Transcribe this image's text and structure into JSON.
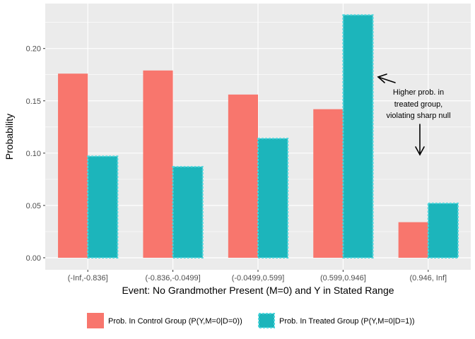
{
  "chart_data": {
    "type": "bar",
    "title": "",
    "xlabel": "Event: No Grandmother Present (M=0) and Y in Stated Range",
    "ylabel": "Probability",
    "ylim": [
      -0.0115,
      0.243
    ],
    "yticks": [
      0.0,
      0.05,
      0.1,
      0.15,
      0.2
    ],
    "ytick_labels": [
      "0.00",
      "0.05",
      "0.10",
      "0.15",
      "0.20"
    ],
    "categories": [
      "(-Inf,-0.836]",
      "(-0.836,-0.0499]",
      "(-0.0499,0.599]",
      "(0.599,0.946]",
      "(0.946, Inf]"
    ],
    "series": [
      {
        "name": "Prob. In Control Group (P(Y,M=0|D=0))",
        "color": "#F8766D",
        "dashed": false,
        "values": [
          0.176,
          0.179,
          0.156,
          0.142,
          0.034
        ]
      },
      {
        "name": "Prob. In Treated Group (P(Y,M=0|D=1))",
        "color": "#1CB5BB",
        "dashed": true,
        "values": [
          0.097,
          0.087,
          0.114,
          0.232,
          0.052
        ]
      }
    ],
    "grid": true,
    "legend_position": "bottom",
    "annotation": {
      "lines": [
        "Higher prob. in",
        "treated group,",
        "violating sharp null"
      ]
    }
  },
  "colors": {
    "panel_background": "#EBEBEB",
    "grid_major": "#FFFFFF",
    "control": "#F8766D",
    "treated": "#1CB5BB"
  }
}
